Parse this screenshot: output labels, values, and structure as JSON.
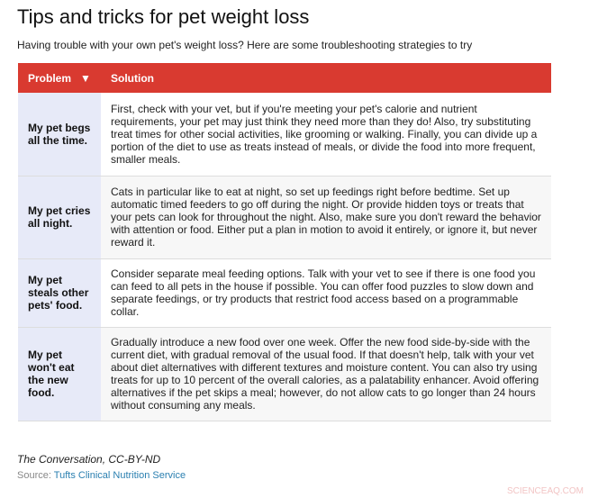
{
  "title": "Tips and tricks for pet weight loss",
  "subtitle": "Having trouble with your own pet's weight loss? Here are some troubleshooting strategies to try",
  "table": {
    "headers": {
      "problem": "Problem",
      "sort_icon": "▼",
      "solution": "Solution"
    },
    "rows": [
      {
        "problem": "My pet begs all the time.",
        "solution": "First, check with your vet, but if you're meeting your pet's calorie and nutrient requirements, your pet may just think they need more than they do! Also, try substituting treat times for other social activities, like grooming or walking. Finally, you can divide up a portion of the diet to use as treats instead of meals, or divide the food into more frequent, smaller meals."
      },
      {
        "problem": "My pet cries all night.",
        "solution": "Cats in particular like to eat at night, so set up feedings right before bedtime. Set up automatic timed feeders to go off during the night. Or provide hidden toys or treats that your pets can look for throughout the night. Also, make sure you don't reward the behavior with attention or food. Either put a plan in motion to avoid it entirely, or ignore it, but never reward it."
      },
      {
        "problem": "My pet steals other pets' food.",
        "solution": "Consider separate meal feeding options. Talk with your vet to see if there is one food you can feed to all pets in the house if possible. You can offer food puzzles to slow down and separate feedings, or try products that restrict food access based on a programmable collar."
      },
      {
        "problem": "My pet won't eat the new food.",
        "solution": "Gradually introduce a new food over one week. Offer the new food side-by-side with the current diet, with gradual removal of the usual food. If that doesn't help, talk with your vet about diet alternatives with different textures and moisture content. You can also try using treats for up to 10 percent of the overall calories, as a palatability enhancer. Avoid offering alternatives if the pet skips a meal; however, do not allow cats to go longer than 24 hours without consuming any meals."
      }
    ]
  },
  "credit": "The Conversation, CC-BY-ND",
  "source": {
    "label": "Source:",
    "link": "Tufts Clinical Nutrition Service"
  },
  "watermark": "SCIENCEAQ.COM",
  "colors": {
    "header": "#d93a30",
    "problem_bg": "#e7eaf8",
    "link": "#2a7fb0"
  }
}
